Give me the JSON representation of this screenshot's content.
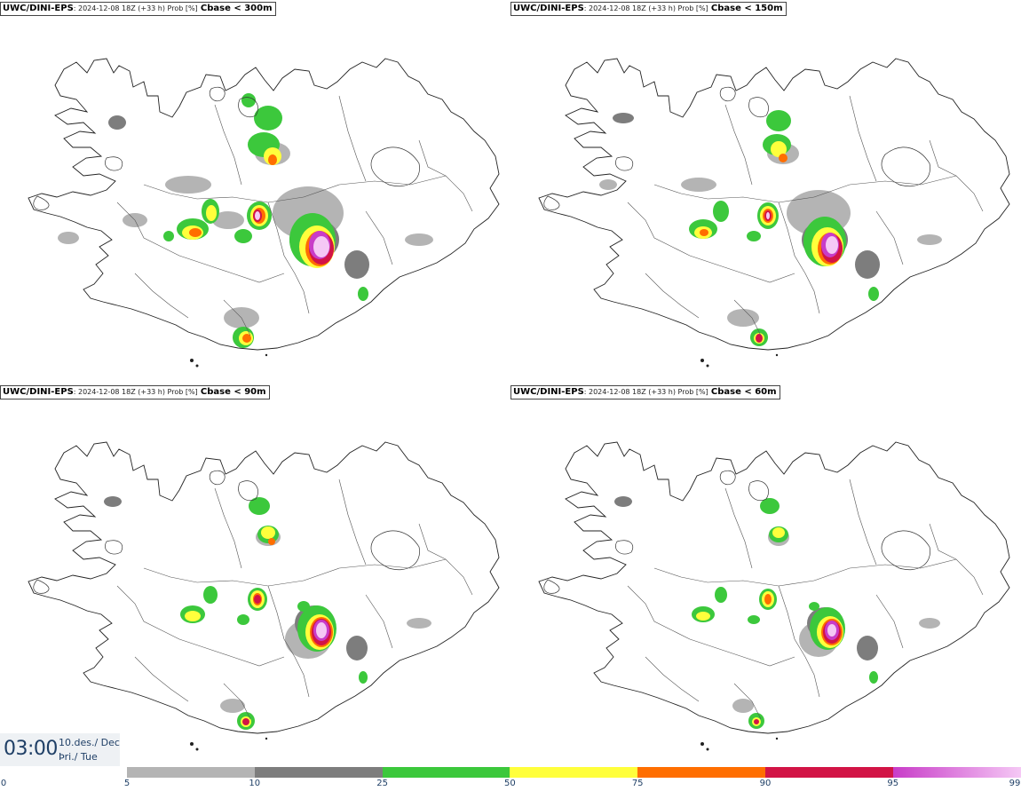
{
  "panels": [
    {
      "model": "UWC/DINI-EPS",
      "meta": ": 2024-12-08 18Z (+33 h) Prob [%]",
      "param": "Cbase < 300m"
    },
    {
      "model": "UWC/DINI-EPS",
      "meta": ": 2024-12-08 18Z (+33 h) Prob [%]",
      "param": "Cbase < 150m"
    },
    {
      "model": "UWC/DINI-EPS",
      "meta": ": 2024-12-08 18Z (+33 h) Prob [%]",
      "param": "Cbase < 90m"
    },
    {
      "model": "UWC/DINI-EPS",
      "meta": ": 2024-12-08 18Z (+33 h) Prob [%]",
      "param": "Cbase < 60m"
    }
  ],
  "valid_time": {
    "hour": "03:00",
    "date_line": "10.des./ Dec",
    "day_line": "Þri./ Tue"
  },
  "legend": {
    "ticks": [
      "0",
      "5",
      "10",
      "25",
      "50",
      "75",
      "90",
      "95",
      "99"
    ],
    "bins": [
      {
        "from": 0,
        "to": 5,
        "color": "#ffffff"
      },
      {
        "from": 5,
        "to": 10,
        "color": "#b4b4b4"
      },
      {
        "from": 10,
        "to": 25,
        "color": "#7d7d7d"
      },
      {
        "from": 25,
        "to": 50,
        "color": "#3cc83c"
      },
      {
        "from": 50,
        "to": 75,
        "color": "#ffff3c"
      },
      {
        "from": 75,
        "to": 90,
        "color": "#ff6e00"
      },
      {
        "from": 90,
        "to": 95,
        "color": "#d21446"
      },
      {
        "from": 95,
        "to": 99,
        "color": "#c83cc8",
        "to_color": "#f5c8f5"
      }
    ]
  }
}
